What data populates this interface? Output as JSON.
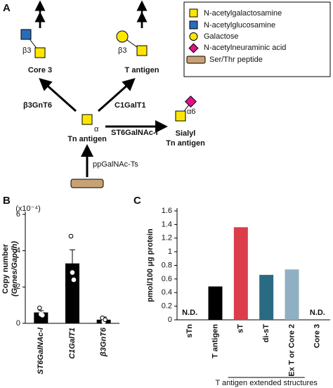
{
  "panel_labels": [
    "A",
    "B",
    "C"
  ],
  "diagram": {
    "nodes": [
      "Core 3",
      "T antigen",
      "Tn antigen",
      "Sialyl",
      "Tn antigen"
    ],
    "enzymes": [
      "β3GnT6",
      "C1GalT1",
      "ST6GalNAc-I",
      "ppGalNAc-Ts"
    ],
    "linkages": [
      "β3",
      "β3",
      "α",
      "α6"
    ],
    "legend": [
      "N-acetylgalactosamine",
      "N-acetylglucosamine",
      "Galactose",
      "N-acetylneuraminic acid",
      "Ser/Thr peptide"
    ]
  },
  "chart_data": [
    {
      "type": "bar",
      "multiplier": "(x10⁻⁴)",
      "ylabel": [
        "Copy number",
        "(Genes/Gapdh)"
      ],
      "categories": [
        "ST6GalNAc-I",
        "C1GalT1",
        "β3GnT6"
      ],
      "values": [
        0.6,
        3.3,
        0.2
      ],
      "errors": [
        0.1,
        0.75,
        0.15
      ],
      "points": [
        [
          0.85,
          0.5,
          0.45
        ],
        [
          4.8,
          2.8,
          2.4
        ],
        [
          0.3,
          0.1,
          0.2
        ]
      ],
      "color": "#000000",
      "ylim": [
        0,
        6
      ],
      "yticks": [
        0,
        2,
        4,
        6
      ]
    },
    {
      "type": "bar",
      "ylabel": "pmol/100 μg protein",
      "categories": [
        "sTn",
        "T antigen",
        "sT",
        "di-sT",
        "Ex T or Core 2",
        "Core 3"
      ],
      "values": [
        null,
        0.49,
        1.36,
        0.66,
        0.74,
        null
      ],
      "value_labels": [
        "N.D.",
        null,
        null,
        null,
        null,
        "N.D."
      ],
      "colors": [
        "#000000",
        "#000000",
        "#dc3d4b",
        "#2b6a83",
        "#8fb0c2",
        "#000000"
      ],
      "ylim": [
        0,
        1.6
      ],
      "yticks": [
        0,
        0.2,
        0.4,
        0.6,
        0.8,
        1,
        1.2,
        1.4,
        1.6
      ],
      "bracket_label": "T antigen extended structures",
      "bracket_categories": [
        2,
        4
      ]
    }
  ]
}
